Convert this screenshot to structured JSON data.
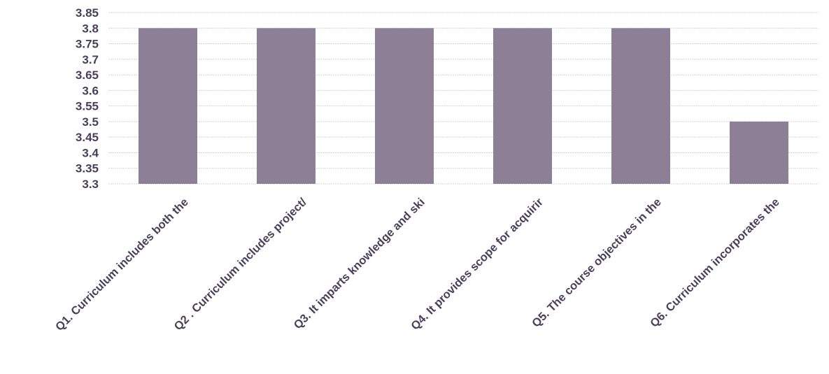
{
  "chart_data": {
    "type": "bar",
    "title": "",
    "xlabel": "",
    "ylabel": "",
    "categories": [
      "Q1. Curriculum includes both the",
      "Q2 . Curriculum includes project/",
      "Q3. It imparts knowledge and ski",
      "Q4. It provides scope for acquirir",
      "Q5. The course objectives in the",
      "Q6. Curriculum incorporates the"
    ],
    "values": [
      3.8,
      3.8,
      3.8,
      3.8,
      3.8,
      3.5
    ],
    "ylim": [
      3.3,
      3.85
    ],
    "yticks": [
      "3.85",
      "3.8",
      "3.75",
      "3.7",
      "3.65",
      "3.6",
      "3.55",
      "3.5",
      "3.45",
      "3.4",
      "3.35",
      "3.3"
    ],
    "grid": true,
    "legend": "none",
    "colors": {
      "bar": "#8c7f96",
      "grid": "#d6d0dd",
      "tick_text": "#4a3f5a"
    }
  }
}
